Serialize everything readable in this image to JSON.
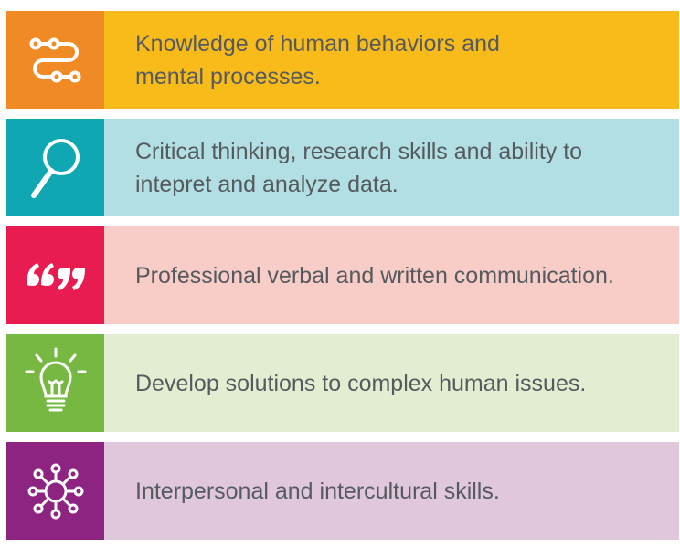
{
  "items": [
    {
      "icon": "path-flow-icon",
      "text": "Knowledge of human behaviors and mental processes.",
      "icon_bg": "#f08a24",
      "text_bg": "#f8bb1a"
    },
    {
      "icon": "magnifying-glass-icon",
      "text": "Critical thinking, research skills and ability to intepret and analyze data.",
      "icon_bg": "#0fa8b2",
      "text_bg": "#b2dfe3"
    },
    {
      "icon": "quotation-marks-icon",
      "text": "Professional verbal and written communication.",
      "icon_bg": "#e81c50",
      "text_bg": "#f8cdc8"
    },
    {
      "icon": "lightbulb-icon",
      "text": "Develop solutions to complex human issues.",
      "icon_bg": "#77b843",
      "text_bg": "#e3edd2"
    },
    {
      "icon": "network-hub-icon",
      "text": "Interpersonal and intercultural skills.",
      "icon_bg": "#8e2481",
      "text_bg": "#e0c7dc"
    }
  ]
}
